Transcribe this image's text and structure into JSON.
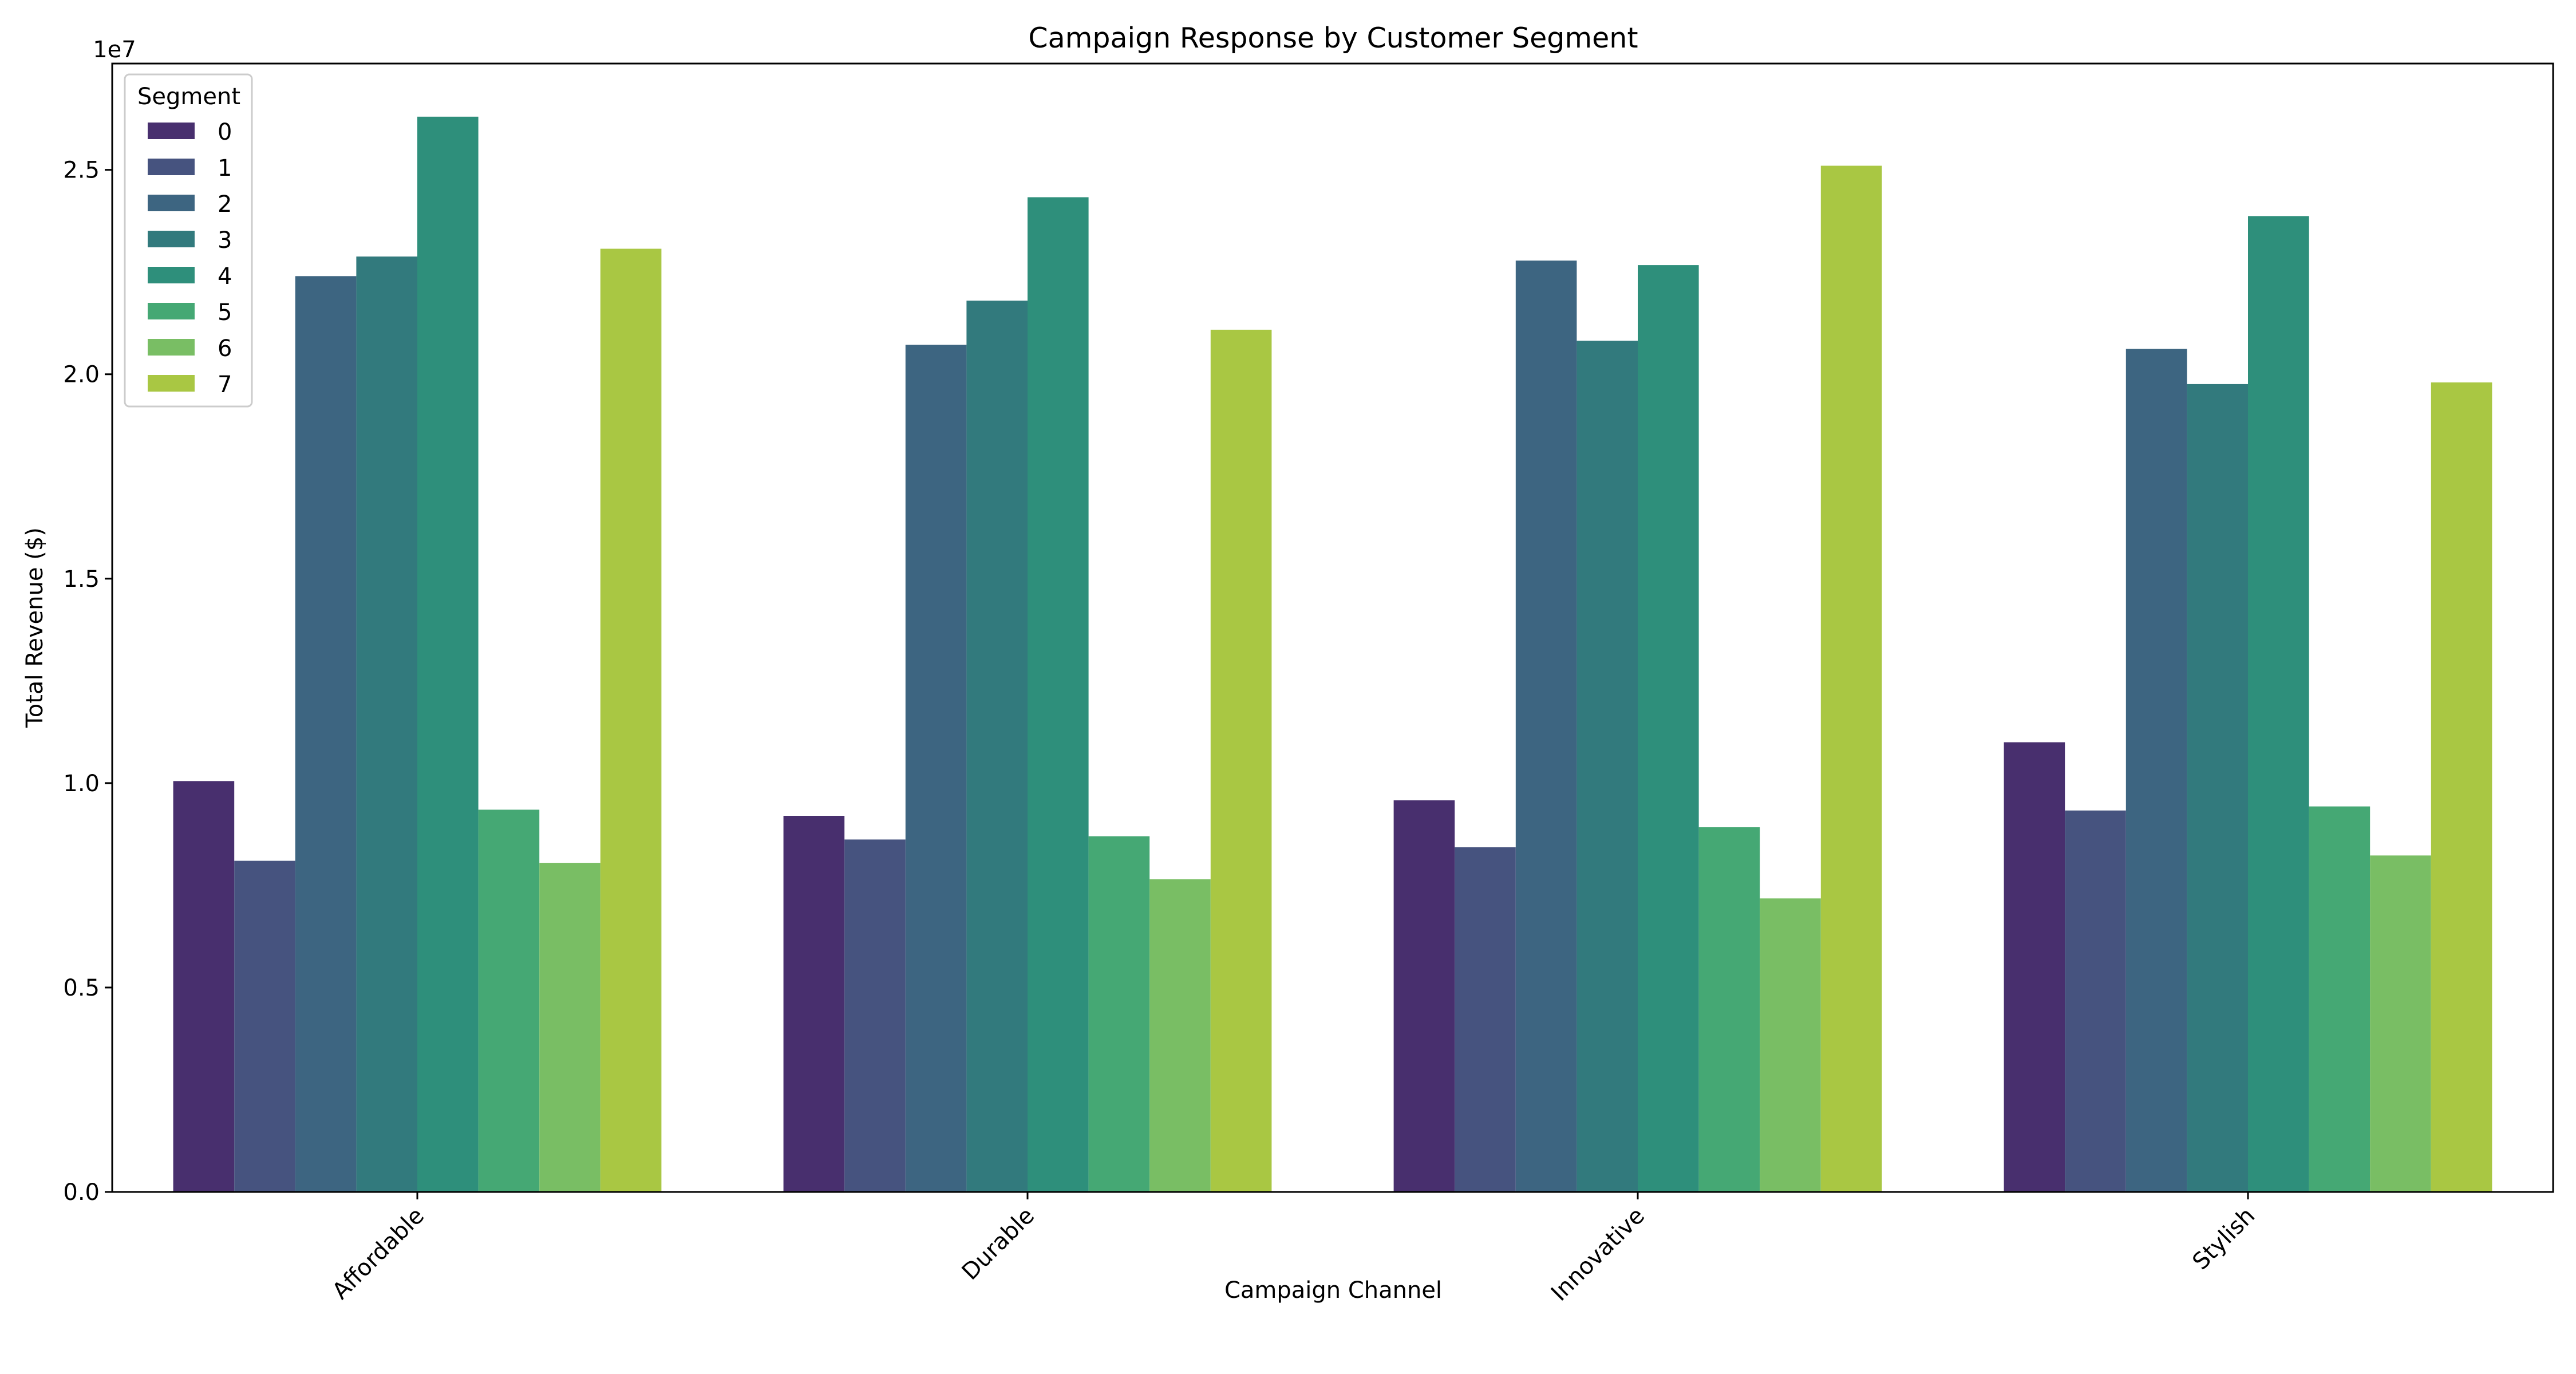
{
  "chart_data": {
    "type": "bar",
    "title": "Campaign Response by Customer Segment",
    "xlabel": "Campaign Channel",
    "ylabel": "Total Revenue ($)",
    "y_offset_label": "1e7",
    "ylim": [
      0,
      27600000
    ],
    "y_ticks": [
      0,
      5000000,
      10000000,
      15000000,
      20000000,
      25000000
    ],
    "y_tick_labels": [
      "0.0",
      "0.5",
      "1.0",
      "1.5",
      "2.0",
      "2.5"
    ],
    "grid": false,
    "categories": [
      "Affordable",
      "Durable",
      "Innovative",
      "Stylish"
    ],
    "legend": {
      "title": "Segment",
      "placement": "top-left"
    },
    "series": [
      {
        "name": "0",
        "color": "#482f6e",
        "values": [
          10050000,
          9200000,
          9580000,
          11000000
        ]
      },
      {
        "name": "1",
        "color": "#46537f",
        "values": [
          8100000,
          8620000,
          8430000,
          9330000
        ]
      },
      {
        "name": "2",
        "color": "#3d6581",
        "values": [
          22400000,
          20720000,
          22780000,
          20620000
        ]
      },
      {
        "name": "3",
        "color": "#327a7d",
        "values": [
          22880000,
          21800000,
          20820000,
          19760000
        ]
      },
      {
        "name": "4",
        "color": "#2e8f7b",
        "values": [
          26300000,
          24330000,
          22670000,
          23870000
        ]
      },
      {
        "name": "5",
        "color": "#45a874",
        "values": [
          9350000,
          8700000,
          8920000,
          9430000
        ]
      },
      {
        "name": "6",
        "color": "#79be64",
        "values": [
          8050000,
          7650000,
          7180000,
          8230000
        ]
      },
      {
        "name": "7",
        "color": "#a9c743",
        "values": [
          23070000,
          21090000,
          25100000,
          19800000
        ]
      }
    ]
  }
}
